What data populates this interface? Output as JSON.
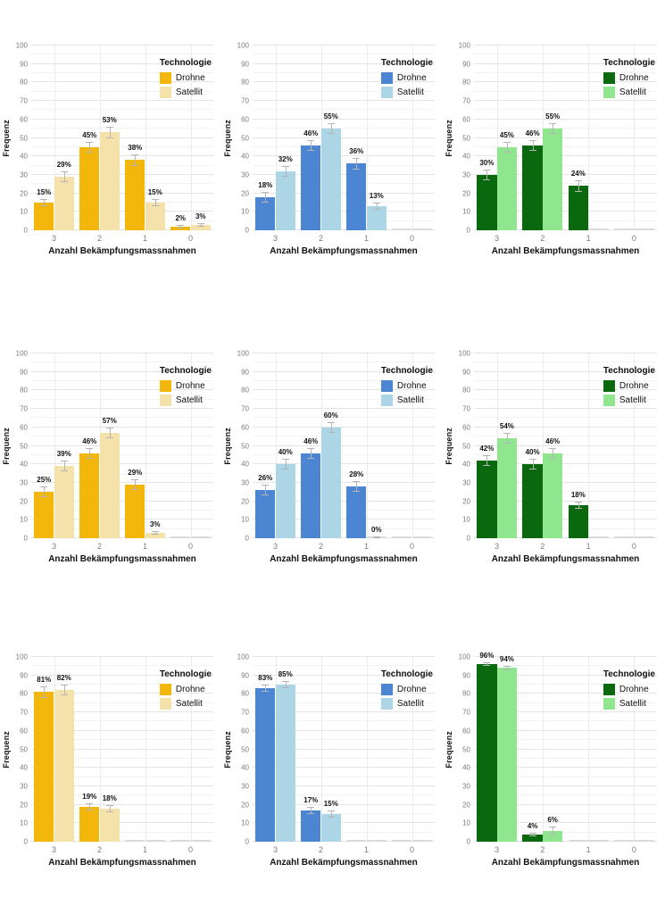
{
  "figure": {
    "background": "#ffffff",
    "layout": "3x3 grid of grouped bar charts",
    "error_bar_color": "#b5b5b5",
    "gridline_color": "#e4e4e4"
  },
  "chart_data": [
    {
      "type": "bar",
      "position": {
        "row": 1,
        "col": 1
      },
      "title": "",
      "xlabel": "Anzahl Bekämpfungsmassnahmen",
      "ylabel": "Frequenz",
      "legend_title": "Technologie",
      "legend_position": "top-right-inside",
      "grid": true,
      "ylim": [
        0,
        100
      ],
      "yticks": [
        0,
        10,
        20,
        30,
        40,
        50,
        60,
        70,
        80,
        90,
        100
      ],
      "categories": [
        "3",
        "2",
        "1",
        "0"
      ],
      "series": [
        {
          "name": "Drohne",
          "color": "#F3B60B",
          "values": [
            15,
            45,
            38,
            2
          ],
          "labels": [
            "15%",
            "45%",
            "38%",
            "2%"
          ],
          "errors": [
            2,
            3,
            3,
            1
          ]
        },
        {
          "name": "Satellit",
          "color": "#F5E2AB",
          "values": [
            29,
            53,
            15,
            3
          ],
          "labels": [
            "29%",
            "53%",
            "15%",
            "3%"
          ],
          "errors": [
            3,
            3,
            2,
            1
          ]
        }
      ]
    },
    {
      "type": "bar",
      "position": {
        "row": 1,
        "col": 2
      },
      "title": "",
      "xlabel": "Anzahl Bekämpfungsmassnahmen",
      "ylabel": "Frequenz",
      "legend_title": "Technologie",
      "legend_position": "top-right-inside",
      "grid": true,
      "ylim": [
        0,
        100
      ],
      "yticks": [
        0,
        10,
        20,
        30,
        40,
        50,
        60,
        70,
        80,
        90,
        100
      ],
      "categories": [
        "3",
        "2",
        "1",
        "0"
      ],
      "series": [
        {
          "name": "Drohne",
          "color": "#4C86D3",
          "values": [
            18,
            46,
            36,
            0
          ],
          "labels": [
            "18%",
            "46%",
            "36%",
            null
          ],
          "errors": [
            3,
            3,
            3,
            0
          ]
        },
        {
          "name": "Satellit",
          "color": "#ACD6E6",
          "values": [
            32,
            55,
            13,
            0
          ],
          "labels": [
            "32%",
            "55%",
            "13%",
            null
          ],
          "errors": [
            3,
            3,
            2,
            0
          ]
        }
      ]
    },
    {
      "type": "bar",
      "position": {
        "row": 1,
        "col": 3
      },
      "title": "",
      "xlabel": "Anzahl Bekämpfungsmassnahmen",
      "ylabel": "Frequenz",
      "legend_title": "Technologie",
      "legend_position": "top-right-inside",
      "grid": true,
      "ylim": [
        0,
        100
      ],
      "yticks": [
        0,
        10,
        20,
        30,
        40,
        50,
        60,
        70,
        80,
        90,
        100
      ],
      "categories": [
        "3",
        "2",
        "1",
        "0"
      ],
      "series": [
        {
          "name": "Drohne",
          "color": "#0A690F",
          "values": [
            30,
            46,
            24,
            0
          ],
          "labels": [
            "30%",
            "46%",
            "24%",
            null
          ],
          "errors": [
            3,
            3,
            3,
            0
          ]
        },
        {
          "name": "Satellit",
          "color": "#8FE68F",
          "values": [
            45,
            55,
            0,
            0
          ],
          "labels": [
            "45%",
            "55%",
            null,
            null
          ],
          "errors": [
            3,
            3,
            0,
            0
          ]
        }
      ]
    },
    {
      "type": "bar",
      "position": {
        "row": 2,
        "col": 1
      },
      "title": "",
      "xlabel": "Anzahl Bekämpfungsmassnahmen",
      "ylabel": "Frequenz",
      "legend_title": "Technologie",
      "legend_position": "top-right-inside",
      "grid": true,
      "ylim": [
        0,
        100
      ],
      "yticks": [
        0,
        10,
        20,
        30,
        40,
        50,
        60,
        70,
        80,
        90,
        100
      ],
      "categories": [
        "3",
        "2",
        "1",
        "0"
      ],
      "series": [
        {
          "name": "Drohne",
          "color": "#F3B60B",
          "values": [
            25,
            46,
            29,
            0
          ],
          "labels": [
            "25%",
            "46%",
            "29%",
            null
          ],
          "errors": [
            3,
            3,
            3,
            0
          ]
        },
        {
          "name": "Satellit",
          "color": "#F5E2AB",
          "values": [
            39,
            57,
            3,
            0
          ],
          "labels": [
            "39%",
            "57%",
            "3%",
            null
          ],
          "errors": [
            3,
            3,
            1,
            0
          ]
        }
      ]
    },
    {
      "type": "bar",
      "position": {
        "row": 2,
        "col": 2
      },
      "title": "",
      "xlabel": "Anzahl Bekämpfungsmassnahmen",
      "ylabel": "Frequenz",
      "legend_title": "Technologie",
      "legend_position": "top-right-inside",
      "grid": true,
      "ylim": [
        0,
        100
      ],
      "yticks": [
        0,
        10,
        20,
        30,
        40,
        50,
        60,
        70,
        80,
        90,
        100
      ],
      "categories": [
        "3",
        "2",
        "1",
        "0"
      ],
      "series": [
        {
          "name": "Drohne",
          "color": "#4C86D3",
          "values": [
            26,
            46,
            28,
            0
          ],
          "labels": [
            "26%",
            "46%",
            "28%",
            null
          ],
          "errors": [
            3,
            3,
            3,
            0
          ]
        },
        {
          "name": "Satellit",
          "color": "#ACD6E6",
          "values": [
            40,
            60,
            0,
            0
          ],
          "labels": [
            "40%",
            "60%",
            "0%",
            null
          ],
          "errors": [
            3,
            3,
            1,
            0
          ]
        }
      ]
    },
    {
      "type": "bar",
      "position": {
        "row": 2,
        "col": 3
      },
      "title": "",
      "xlabel": "Anzahl Bekämpfungsmassnahmen",
      "ylabel": "Frequenz",
      "legend_title": "Technologie",
      "legend_position": "top-right-inside",
      "grid": true,
      "ylim": [
        0,
        100
      ],
      "yticks": [
        0,
        10,
        20,
        30,
        40,
        50,
        60,
        70,
        80,
        90,
        100
      ],
      "categories": [
        "3",
        "2",
        "1",
        "0"
      ],
      "series": [
        {
          "name": "Drohne",
          "color": "#0A690F",
          "values": [
            42,
            40,
            18,
            0
          ],
          "labels": [
            "42%",
            "40%",
            "18%",
            null
          ],
          "errors": [
            3,
            3,
            2,
            0
          ]
        },
        {
          "name": "Satellit",
          "color": "#8FE68F",
          "values": [
            54,
            46,
            0,
            0
          ],
          "labels": [
            "54%",
            "46%",
            null,
            null
          ],
          "errors": [
            3,
            3,
            0,
            0
          ]
        }
      ]
    },
    {
      "type": "bar",
      "position": {
        "row": 3,
        "col": 1
      },
      "title": "",
      "xlabel": "Anzahl Bekämpfungsmassnahmen",
      "ylabel": "Frequenz",
      "legend_title": "Technologie",
      "legend_position": "top-right-inside",
      "grid": true,
      "ylim": [
        0,
        100
      ],
      "yticks": [
        0,
        10,
        20,
        30,
        40,
        50,
        60,
        70,
        80,
        90,
        100
      ],
      "categories": [
        "3",
        "2",
        "1",
        "0"
      ],
      "series": [
        {
          "name": "Drohne",
          "color": "#F3B60B",
          "values": [
            81,
            19,
            0,
            0
          ],
          "labels": [
            "81%",
            "19%",
            null,
            null
          ],
          "errors": [
            3,
            2,
            0,
            0
          ]
        },
        {
          "name": "Satellit",
          "color": "#F5E2AB",
          "values": [
            82,
            18,
            0,
            0
          ],
          "labels": [
            "82%",
            "18%",
            null,
            null
          ],
          "errors": [
            3,
            2,
            0,
            0
          ]
        }
      ]
    },
    {
      "type": "bar",
      "position": {
        "row": 3,
        "col": 2
      },
      "title": "",
      "xlabel": "Anzahl Bekämpfungsmassnahmen",
      "ylabel": "Frequenz",
      "legend_title": "Technologie",
      "legend_position": "top-right-inside",
      "grid": true,
      "ylim": [
        0,
        100
      ],
      "yticks": [
        0,
        10,
        20,
        30,
        40,
        50,
        60,
        70,
        80,
        90,
        100
      ],
      "categories": [
        "3",
        "2",
        "1",
        "0"
      ],
      "series": [
        {
          "name": "Drohne",
          "color": "#4C86D3",
          "values": [
            83,
            17,
            0,
            0
          ],
          "labels": [
            "83%",
            "17%",
            null,
            null
          ],
          "errors": [
            2,
            2,
            0,
            0
          ]
        },
        {
          "name": "Satellit",
          "color": "#ACD6E6",
          "values": [
            85,
            15,
            0,
            0
          ],
          "labels": [
            "85%",
            "15%",
            null,
            null
          ],
          "errors": [
            2,
            2,
            0,
            0
          ]
        }
      ]
    },
    {
      "type": "bar",
      "position": {
        "row": 3,
        "col": 3
      },
      "title": "",
      "xlabel": "Anzahl Bekämpfungsmassnahmen",
      "ylabel": "Frequenz",
      "legend_title": "Technologie",
      "legend_position": "top-right-inside",
      "grid": true,
      "ylim": [
        0,
        100
      ],
      "yticks": [
        0,
        10,
        20,
        30,
        40,
        50,
        60,
        70,
        80,
        90,
        100
      ],
      "categories": [
        "3",
        "2",
        "1",
        "0"
      ],
      "series": [
        {
          "name": "Drohne",
          "color": "#0A690F",
          "values": [
            96,
            4,
            0,
            0
          ],
          "labels": [
            "96%",
            "4%",
            null,
            null
          ],
          "errors": [
            1,
            1,
            0,
            0
          ]
        },
        {
          "name": "Satellit",
          "color": "#8FE68F",
          "values": [
            94,
            6,
            0,
            0
          ],
          "labels": [
            "94%",
            "6%",
            null,
            null
          ],
          "errors": [
            1,
            2,
            0,
            0
          ]
        }
      ]
    }
  ]
}
